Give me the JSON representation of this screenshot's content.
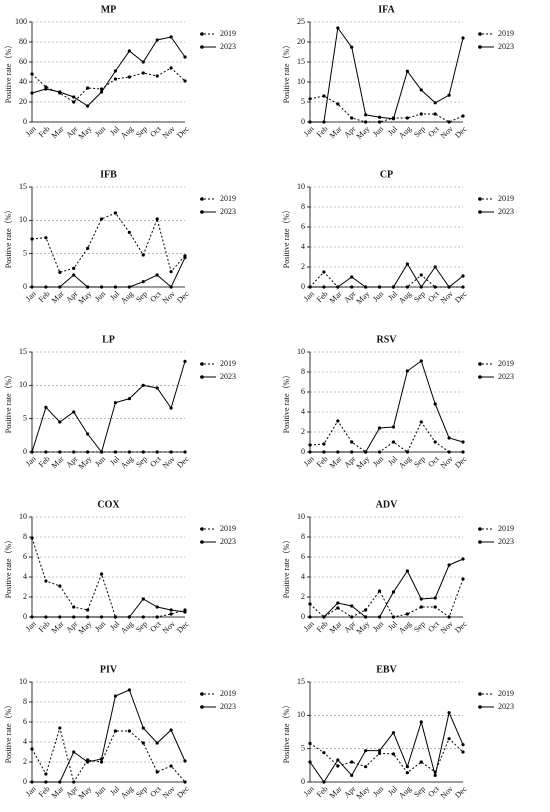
{
  "chart_data": [
    {
      "type": "line",
      "title": "MP",
      "y_label": "Positive rate（%）",
      "grid": true,
      "categories": [
        "Jan",
        "Feb",
        "Mar",
        "Apr",
        "May",
        "Jun",
        "Jul",
        "Aug",
        "Sep",
        "Oct",
        "Nov",
        "Dec"
      ],
      "ylim": [
        0,
        100
      ],
      "yticks": [
        0,
        20,
        40,
        60,
        80,
        100
      ],
      "series": [
        {
          "name": "2019",
          "color": "#000000",
          "line_style": "dotted",
          "values": [
            48,
            35,
            29,
            20,
            34,
            33,
            43,
            45,
            49,
            46,
            54,
            41
          ]
        },
        {
          "name": "2023",
          "color": "#000000",
          "line_style": "solid",
          "values": [
            29,
            33,
            30,
            25,
            16,
            30,
            51,
            71,
            60,
            82,
            85,
            65
          ]
        }
      ]
    },
    {
      "type": "line",
      "title": "IFA",
      "y_label": "Positive rate（%）",
      "grid": true,
      "categories": [
        "Jan",
        "Feb",
        "Mar",
        "Apr",
        "May",
        "Jun",
        "Jul",
        "Aug",
        "Sep",
        "Oct",
        "Nov",
        "Dec"
      ],
      "ylim": [
        0,
        25
      ],
      "yticks": [
        0,
        5,
        10,
        15,
        20,
        25
      ],
      "series": [
        {
          "name": "2019",
          "color": "#000000",
          "line_style": "dotted",
          "values": [
            5.8,
            6.5,
            4.5,
            1,
            0,
            0,
            1,
            1,
            2,
            2,
            0,
            1.5
          ]
        },
        {
          "name": "2023",
          "color": "#000000",
          "line_style": "solid",
          "values": [
            0,
            0,
            23.5,
            18.7,
            1.8,
            1.2,
            0.8,
            12.7,
            8,
            4.8,
            6.7,
            21
          ]
        }
      ]
    },
    {
      "type": "line",
      "title": "IFB",
      "y_label": "Positive rate（%）",
      "grid": true,
      "categories": [
        "Jan",
        "Feb",
        "Mar",
        "Apr",
        "May",
        "Jun",
        "Jul",
        "Aug",
        "Sep",
        "Oct",
        "Nov",
        "Dec"
      ],
      "ylim": [
        0,
        15
      ],
      "yticks": [
        0,
        5,
        10,
        15
      ],
      "series": [
        {
          "name": "2019",
          "color": "#000000",
          "line_style": "dotted",
          "values": [
            7.2,
            7.4,
            2.2,
            2.8,
            5.8,
            10.2,
            11.1,
            8.2,
            4.8,
            10.2,
            2.3,
            4.7
          ]
        },
        {
          "name": "2023",
          "color": "#000000",
          "line_style": "solid",
          "values": [
            0,
            0,
            0,
            1.8,
            0,
            0,
            0,
            0,
            0.8,
            1.8,
            0,
            4.4
          ]
        }
      ]
    },
    {
      "type": "line",
      "title": "CP",
      "y_label": "Positive rate（%）",
      "grid": true,
      "categories": [
        "Jan",
        "Feb",
        "Mar",
        "Apr",
        "May",
        "Jun",
        "Jul",
        "Aug",
        "Sep",
        "Oct",
        "Nov",
        "Dec"
      ],
      "ylim": [
        0,
        10
      ],
      "yticks": [
        0,
        2,
        4,
        6,
        8,
        10
      ],
      "series": [
        {
          "name": "2019",
          "color": "#000000",
          "line_style": "dotted",
          "values": [
            0,
            1.5,
            0,
            0,
            0,
            0,
            0,
            0,
            1.2,
            0,
            0,
            0
          ]
        },
        {
          "name": "2023",
          "color": "#000000",
          "line_style": "solid",
          "values": [
            0,
            0,
            0,
            1,
            0,
            0,
            0,
            2.3,
            0,
            2,
            0,
            1.1
          ]
        }
      ]
    },
    {
      "type": "line",
      "title": "LP",
      "y_label": "Positive rate（%）",
      "grid": true,
      "categories": [
        "Jan",
        "Feb",
        "Mar",
        "Apr",
        "May",
        "Jun",
        "Jul",
        "Aug",
        "Sep",
        "Oct",
        "Nov",
        "Dec"
      ],
      "ylim": [
        0,
        15
      ],
      "yticks": [
        0,
        5,
        10,
        15
      ],
      "series": [
        {
          "name": "2019",
          "color": "#000000",
          "line_style": "dotted",
          "values": [
            0,
            0,
            0,
            0,
            0,
            0,
            0,
            0,
            0,
            0,
            0,
            0
          ]
        },
        {
          "name": "2023",
          "color": "#000000",
          "line_style": "solid",
          "values": [
            0,
            6.7,
            4.5,
            6,
            2.7,
            0,
            7.4,
            8,
            10,
            9.6,
            6.6,
            13.6
          ]
        }
      ]
    },
    {
      "type": "line",
      "title": "RSV",
      "y_label": "Positive rate（%）",
      "grid": true,
      "categories": [
        "Jan",
        "Feb",
        "Mar",
        "Apr",
        "May",
        "Jun",
        "Jul",
        "Aug",
        "Sep",
        "Oct",
        "Nov",
        "Dec"
      ],
      "ylim": [
        0,
        10
      ],
      "yticks": [
        0,
        2,
        4,
        6,
        8,
        10
      ],
      "series": [
        {
          "name": "2019",
          "color": "#000000",
          "line_style": "dotted",
          "values": [
            0.7,
            0.8,
            3.1,
            1,
            0,
            0,
            1,
            0,
            3,
            1,
            0,
            0
          ]
        },
        {
          "name": "2023",
          "color": "#000000",
          "line_style": "solid",
          "values": [
            0,
            0,
            0,
            0,
            0,
            2.4,
            2.5,
            8.1,
            9.1,
            4.8,
            1.4,
            1
          ]
        }
      ]
    },
    {
      "type": "line",
      "title": "COX",
      "y_label": "Positive rate（%）",
      "grid": true,
      "categories": [
        "Jan",
        "Feb",
        "Mar",
        "Apr",
        "May",
        "Jun",
        "Jul",
        "Aug",
        "Sep",
        "Oct",
        "Nov",
        "Dec"
      ],
      "ylim": [
        0,
        10
      ],
      "yticks": [
        0,
        2,
        4,
        6,
        8,
        10
      ],
      "series": [
        {
          "name": "2019",
          "color": "#000000",
          "line_style": "dotted",
          "values": [
            7.9,
            3.6,
            3.1,
            1,
            0.7,
            4.3,
            0,
            0,
            0,
            0,
            0.3,
            0.7
          ]
        },
        {
          "name": "2023",
          "color": "#000000",
          "line_style": "solid",
          "values": [
            0,
            0,
            0,
            0,
            0,
            0,
            0,
            0,
            1.8,
            1,
            0.7,
            0.5
          ]
        }
      ]
    },
    {
      "type": "line",
      "title": "ADV",
      "y_label": "Positive rate（%）",
      "grid": true,
      "categories": [
        "Jan",
        "Feb",
        "Mar",
        "Apr",
        "May",
        "Jun",
        "Jul",
        "Aug",
        "Sep",
        "Oct",
        "Nov",
        "Dec"
      ],
      "ylim": [
        0,
        10
      ],
      "yticks": [
        0,
        2,
        4,
        6,
        8,
        10
      ],
      "series": [
        {
          "name": "2019",
          "color": "#000000",
          "line_style": "dotted",
          "values": [
            1.3,
            0,
            0.9,
            0,
            0.7,
            2.6,
            0,
            0.3,
            1,
            1,
            0,
            3.8
          ]
        },
        {
          "name": "2023",
          "color": "#000000",
          "line_style": "solid",
          "values": [
            0,
            0,
            1.4,
            1.1,
            0,
            0,
            2.5,
            4.6,
            1.8,
            1.9,
            5.2,
            5.8
          ]
        }
      ]
    },
    {
      "type": "line",
      "title": "PIV",
      "y_label": "Positive rate（%）",
      "grid": true,
      "categories": [
        "Jan",
        "Feb",
        "Mar",
        "Apr",
        "May",
        "Jun",
        "Jul",
        "Aug",
        "Sep",
        "Oct",
        "Nov",
        "Dec"
      ],
      "ylim": [
        0,
        10
      ],
      "yticks": [
        0,
        2,
        4,
        6,
        8,
        10
      ],
      "series": [
        {
          "name": "2019",
          "color": "#000000",
          "line_style": "dotted",
          "values": [
            3.3,
            0.8,
            5.4,
            0,
            2.2,
            2,
            5.1,
            5.1,
            3.9,
            1,
            1.6,
            0
          ]
        },
        {
          "name": "2023",
          "color": "#000000",
          "line_style": "solid",
          "values": [
            0,
            0,
            0,
            3,
            2,
            2.3,
            8.6,
            9.2,
            5.4,
            3.9,
            5.2,
            2.1
          ]
        }
      ]
    },
    {
      "type": "line",
      "title": "EBV",
      "y_label": "Positive rate（%）",
      "grid": true,
      "categories": [
        "Jan",
        "Feb",
        "Mar",
        "Apr",
        "May",
        "Jun",
        "Jul",
        "Aug",
        "Sep",
        "Oct",
        "Nov",
        "Dec"
      ],
      "ylim": [
        0,
        15
      ],
      "yticks": [
        0,
        5,
        10,
        15
      ],
      "series": [
        {
          "name": "2019",
          "color": "#000000",
          "line_style": "dotted",
          "values": [
            5.8,
            4.4,
            2.4,
            3,
            2.3,
            4.3,
            4.2,
            1.4,
            3,
            1.5,
            6.5,
            4.5
          ]
        },
        {
          "name": "2023",
          "color": "#000000",
          "line_style": "solid",
          "values": [
            3,
            0,
            3.3,
            1,
            4.7,
            4.7,
            7.4,
            2.3,
            9,
            1,
            10.4,
            5.6
          ]
        }
      ]
    }
  ]
}
